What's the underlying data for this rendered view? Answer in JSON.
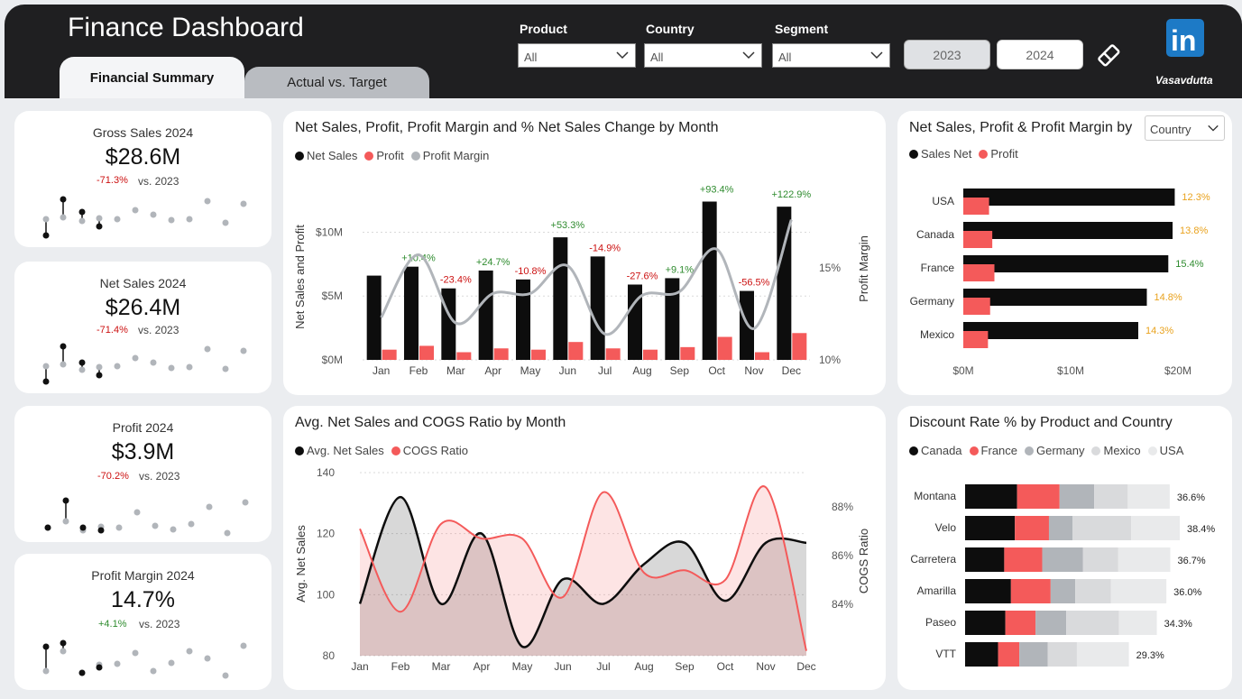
{
  "header": {
    "title": "Finance Dashboard",
    "tabs": [
      {
        "label": "Financial Summary"
      },
      {
        "label": "Actual vs. Target"
      }
    ],
    "filters": [
      {
        "label": "Product",
        "value": "All"
      },
      {
        "label": "Country",
        "value": "All"
      },
      {
        "label": "Segment",
        "value": "All"
      }
    ],
    "years": [
      "2023",
      "2024"
    ],
    "logo_text": "in",
    "logo_name": "Vasavdutta"
  },
  "kpis": [
    {
      "title": "Gross Sales 2024",
      "value": "$28.6M",
      "delta": "-71.3%",
      "vs": "vs.  2023"
    },
    {
      "title": "Net Sales 2024",
      "value": "$26.4M",
      "delta": "-71.4%",
      "vs": "vs.  2023"
    },
    {
      "title": "Profit 2024",
      "value": "$3.9M",
      "delta": "-70.2%",
      "vs": "vs.  2023"
    },
    {
      "title": "Profit Margin 2024",
      "value": "14.7%",
      "delta": "+4.1%",
      "vs": "vs.  2023"
    }
  ],
  "colors": {
    "black": "#0d0d0d",
    "red": "#f45a5a",
    "grey": "#b1b5ba",
    "light_grey": "#d9dadc",
    "lightest_grey": "#e9eaeb",
    "green": "#2e8b2e",
    "darkred": "#cc1111",
    "orange": "#e9a21d"
  },
  "chart_data": [
    {
      "id": "monthly",
      "type": "bar",
      "title": "Net Sales, Profit, Profit Margin and % Net Sales Change by Month",
      "legend": [
        "Net Sales",
        "Profit",
        "Profit Margin"
      ],
      "categories": [
        "Jan",
        "Feb",
        "Mar",
        "Apr",
        "May",
        "Jun",
        "Jul",
        "Aug",
        "Sep",
        "Oct",
        "Nov",
        "Dec"
      ],
      "series": [
        {
          "name": "Net Sales",
          "values": [
            6.6,
            7.3,
            5.6,
            7.0,
            6.3,
            9.6,
            8.1,
            5.9,
            6.4,
            12.4,
            5.4,
            12.0
          ]
        },
        {
          "name": "Profit",
          "values": [
            0.8,
            1.1,
            0.6,
            0.9,
            0.8,
            1.4,
            0.9,
            0.8,
            1.0,
            1.8,
            0.6,
            2.1
          ]
        },
        {
          "name": "Profit Margin",
          "values": [
            12.3,
            15.7,
            12.0,
            13.6,
            13.6,
            15.1,
            11.4,
            13.5,
            13.7,
            16.0,
            11.7,
            17.6
          ]
        }
      ],
      "pct_change": [
        "",
        "+10.4%",
        "-23.4%",
        "+24.7%",
        "-10.8%",
        "+53.3%",
        "-14.9%",
        "-27.6%",
        "+9.1%",
        "+93.4%",
        "-56.5%",
        "+122.9%"
      ],
      "y_ticks": [
        "$0M",
        "$5M",
        "$10M"
      ],
      "y2_ticks": [
        "10%",
        "15%"
      ],
      "ylabel": "Net Sales and Profit",
      "y2label": "Profit Margin",
      "ylim": [
        0,
        13
      ],
      "y2lim": [
        10,
        19
      ]
    },
    {
      "id": "country",
      "type": "bar",
      "title": "Net Sales, Profit & Profit Margin by",
      "dropdown": "Country",
      "legend": [
        "Sales Net",
        "Profit"
      ],
      "categories": [
        "USA",
        "Canada",
        "France",
        "Germany",
        "Mexico"
      ],
      "series": [
        {
          "name": "Sales Net",
          "values": [
            19.7,
            19.5,
            19.1,
            17.1,
            16.3
          ]
        },
        {
          "name": "Profit",
          "values": [
            2.4,
            2.7,
            2.9,
            2.5,
            2.3
          ]
        }
      ],
      "margin_labels": [
        "12.3%",
        "13.8%",
        "15.4%",
        "14.8%",
        "14.3%"
      ],
      "margin_colors": [
        "#e9a21d",
        "#e9a21d",
        "#2e8b2e",
        "#e9a21d",
        "#e9a21d"
      ],
      "x_ticks": [
        "$0M",
        "$10M",
        "$20M"
      ],
      "xlim": [
        0,
        20
      ]
    },
    {
      "id": "avg_cogs",
      "type": "area",
      "title": "Avg. Net Sales and COGS Ratio by Month",
      "legend": [
        "Avg. Net Sales",
        "COGS Ratio"
      ],
      "categories": [
        "Jan",
        "Feb",
        "Mar",
        "Apr",
        "May",
        "Jun",
        "Jul",
        "Aug",
        "Sep",
        "Oct",
        "Nov",
        "Dec"
      ],
      "series": [
        {
          "name": "Avg. Net Sales",
          "values": [
            97,
            132,
            97,
            120,
            83,
            105,
            97,
            110,
            117,
            98,
            117,
            117
          ]
        },
        {
          "name": "COGS Ratio",
          "values": [
            87.1,
            83.7,
            87.3,
            86.7,
            86.7,
            84.3,
            88.6,
            85.3,
            85.4,
            85.0,
            88.8,
            82.1
          ]
        }
      ],
      "y_ticks": [
        "80",
        "100",
        "120",
        "140"
      ],
      "y2_ticks": [
        "84%",
        "86%",
        "88%"
      ],
      "ylabel": "Avg. Net Sales",
      "y2label": "COGS Ratio",
      "ylim": [
        80,
        140
      ],
      "y2lim": [
        81.9,
        89.4
      ]
    },
    {
      "id": "discount",
      "type": "bar",
      "title": "Discount Rate % by Product and Country",
      "legend": [
        "Canada",
        "France",
        "Germany",
        "Mexico",
        "USA"
      ],
      "categories": [
        "Montana",
        "Velo",
        "Carretera",
        "Amarilla",
        "Paseo",
        "VTT"
      ],
      "series": [
        {
          "name": "Canada",
          "values": [
            9.3,
            8.9,
            7.0,
            8.2,
            7.2,
            5.9
          ]
        },
        {
          "name": "France",
          "values": [
            7.6,
            6.1,
            6.8,
            7.1,
            5.4,
            3.8
          ]
        },
        {
          "name": "Germany",
          "values": [
            6.2,
            4.2,
            7.3,
            4.4,
            5.5,
            5.1
          ]
        },
        {
          "name": "Mexico",
          "values": [
            6.0,
            10.5,
            6.3,
            6.4,
            9.4,
            5.2
          ]
        },
        {
          "name": "USA",
          "values": [
            7.5,
            8.7,
            9.3,
            9.9,
            6.8,
            9.3
          ]
        }
      ],
      "totals": [
        "36.6%",
        "38.4%",
        "36.7%",
        "36.0%",
        "34.3%",
        "29.3%"
      ],
      "xlim": [
        0,
        38.4
      ]
    }
  ]
}
